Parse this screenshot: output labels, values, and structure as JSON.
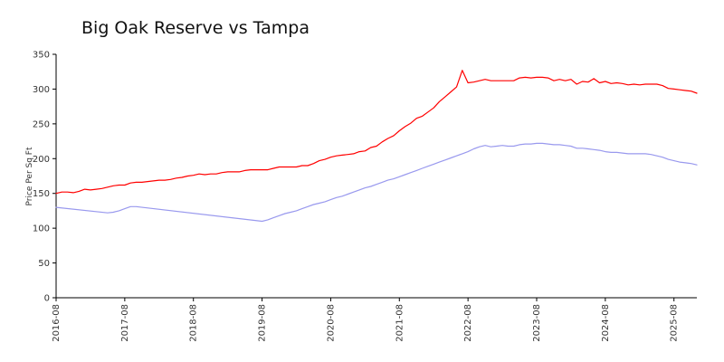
{
  "chart_data": {
    "type": "line",
    "title": "Big Oak Reserve vs Tampa",
    "xlabel": "",
    "ylabel": "Price Per Sq Ft",
    "ylim": [
      0,
      350
    ],
    "yticks": [
      0,
      50,
      100,
      150,
      200,
      250,
      300,
      350
    ],
    "xlim": [
      "2016-08",
      "2025-12"
    ],
    "xticks": [
      "2016-08",
      "2017-08",
      "2018-08",
      "2019-08",
      "2020-08",
      "2021-08",
      "2022-08",
      "2023-08",
      "2024-08",
      "2025-08"
    ],
    "grid": false,
    "legend": "none",
    "series": [
      {
        "name": "Big Oak Reserve",
        "color": "#ff0000",
        "points": [
          [
            "2016-08",
            150
          ],
          [
            "2016-09",
            152
          ],
          [
            "2016-10",
            152
          ],
          [
            "2016-11",
            151
          ],
          [
            "2016-12",
            153
          ],
          [
            "2017-01",
            156
          ],
          [
            "2017-02",
            155
          ],
          [
            "2017-03",
            156
          ],
          [
            "2017-04",
            157
          ],
          [
            "2017-05",
            159
          ],
          [
            "2017-06",
            161
          ],
          [
            "2017-07",
            162
          ],
          [
            "2017-08",
            162
          ],
          [
            "2017-09",
            165
          ],
          [
            "2017-10",
            166
          ],
          [
            "2017-11",
            166
          ],
          [
            "2017-12",
            167
          ],
          [
            "2018-01",
            168
          ],
          [
            "2018-02",
            169
          ],
          [
            "2018-03",
            169
          ],
          [
            "2018-04",
            170
          ],
          [
            "2018-05",
            172
          ],
          [
            "2018-06",
            173
          ],
          [
            "2018-07",
            175
          ],
          [
            "2018-08",
            176
          ],
          [
            "2018-09",
            178
          ],
          [
            "2018-10",
            177
          ],
          [
            "2018-11",
            178
          ],
          [
            "2018-12",
            178
          ],
          [
            "2019-01",
            180
          ],
          [
            "2019-02",
            181
          ],
          [
            "2019-03",
            181
          ],
          [
            "2019-04",
            181
          ],
          [
            "2019-05",
            183
          ],
          [
            "2019-06",
            184
          ],
          [
            "2019-07",
            184
          ],
          [
            "2019-08",
            184
          ],
          [
            "2019-09",
            184
          ],
          [
            "2019-10",
            186
          ],
          [
            "2019-11",
            188
          ],
          [
            "2019-12",
            188
          ],
          [
            "2020-01",
            188
          ],
          [
            "2020-02",
            188
          ],
          [
            "2020-03",
            190
          ],
          [
            "2020-04",
            190
          ],
          [
            "2020-05",
            193
          ],
          [
            "2020-06",
            197
          ],
          [
            "2020-07",
            199
          ],
          [
            "2020-08",
            202
          ],
          [
            "2020-09",
            204
          ],
          [
            "2020-10",
            205
          ],
          [
            "2020-11",
            206
          ],
          [
            "2020-12",
            207
          ],
          [
            "2021-01",
            210
          ],
          [
            "2021-02",
            211
          ],
          [
            "2021-03",
            216
          ],
          [
            "2021-04",
            218
          ],
          [
            "2021-05",
            224
          ],
          [
            "2021-06",
            229
          ],
          [
            "2021-07",
            233
          ],
          [
            "2021-08",
            240
          ],
          [
            "2021-09",
            246
          ],
          [
            "2021-10",
            251
          ],
          [
            "2021-11",
            258
          ],
          [
            "2021-12",
            261
          ],
          [
            "2022-01",
            267
          ],
          [
            "2022-02",
            273
          ],
          [
            "2022-03",
            282
          ],
          [
            "2022-04",
            289
          ],
          [
            "2022-05",
            296
          ],
          [
            "2022-06",
            303
          ],
          [
            "2022-07",
            327
          ],
          [
            "2022-08",
            309
          ],
          [
            "2022-09",
            310
          ],
          [
            "2022-10",
            312
          ],
          [
            "2022-11",
            314
          ],
          [
            "2022-12",
            312
          ],
          [
            "2023-01",
            312
          ],
          [
            "2023-02",
            312
          ],
          [
            "2023-03",
            312
          ],
          [
            "2023-04",
            312
          ],
          [
            "2023-05",
            316
          ],
          [
            "2023-06",
            317
          ],
          [
            "2023-07",
            316
          ],
          [
            "2023-08",
            317
          ],
          [
            "2023-09",
            317
          ],
          [
            "2023-10",
            316
          ],
          [
            "2023-11",
            312
          ],
          [
            "2023-12",
            314
          ],
          [
            "2024-01",
            312
          ],
          [
            "2024-02",
            314
          ],
          [
            "2024-03",
            307
          ],
          [
            "2024-04",
            311
          ],
          [
            "2024-05",
            310
          ],
          [
            "2024-06",
            315
          ],
          [
            "2024-07",
            309
          ],
          [
            "2024-08",
            311
          ],
          [
            "2024-09",
            308
          ],
          [
            "2024-10",
            309
          ],
          [
            "2024-11",
            308
          ],
          [
            "2024-12",
            306
          ],
          [
            "2025-01",
            307
          ],
          [
            "2025-02",
            306
          ],
          [
            "2025-03",
            307
          ],
          [
            "2025-04",
            307
          ],
          [
            "2025-05",
            307
          ],
          [
            "2025-06",
            305
          ],
          [
            "2025-07",
            301
          ],
          [
            "2025-08",
            300
          ],
          [
            "2025-09",
            299
          ],
          [
            "2025-10",
            298
          ],
          [
            "2025-11",
            297
          ],
          [
            "2025-12",
            294
          ]
        ]
      },
      {
        "name": "Tampa",
        "color": "#9999ee",
        "points": [
          [
            "2016-08",
            130
          ],
          [
            "2017-05",
            122
          ],
          [
            "2017-06",
            123
          ],
          [
            "2017-07",
            125
          ],
          [
            "2017-08",
            128
          ],
          [
            "2017-09",
            131
          ],
          [
            "2017-10",
            131
          ],
          [
            "2019-08",
            110
          ],
          [
            "2019-09",
            112
          ],
          [
            "2019-10",
            115
          ],
          [
            "2019-11",
            118
          ],
          [
            "2019-12",
            121
          ],
          [
            "2020-01",
            123
          ],
          [
            "2020-02",
            125
          ],
          [
            "2020-03",
            128
          ],
          [
            "2020-04",
            131
          ],
          [
            "2020-05",
            134
          ],
          [
            "2020-06",
            136
          ],
          [
            "2020-07",
            138
          ],
          [
            "2020-08",
            141
          ],
          [
            "2020-09",
            144
          ],
          [
            "2020-10",
            146
          ],
          [
            "2020-11",
            149
          ],
          [
            "2020-12",
            152
          ],
          [
            "2021-01",
            155
          ],
          [
            "2021-02",
            158
          ],
          [
            "2021-03",
            160
          ],
          [
            "2021-04",
            163
          ],
          [
            "2021-05",
            166
          ],
          [
            "2021-06",
            169
          ],
          [
            "2021-07",
            171
          ],
          [
            "2021-08",
            174
          ],
          [
            "2021-09",
            177
          ],
          [
            "2021-10",
            180
          ],
          [
            "2021-11",
            183
          ],
          [
            "2021-12",
            186
          ],
          [
            "2022-01",
            189
          ],
          [
            "2022-02",
            192
          ],
          [
            "2022-03",
            195
          ],
          [
            "2022-04",
            198
          ],
          [
            "2022-05",
            201
          ],
          [
            "2022-06",
            204
          ],
          [
            "2022-07",
            207
          ],
          [
            "2022-08",
            210
          ],
          [
            "2022-09",
            214
          ],
          [
            "2022-10",
            217
          ],
          [
            "2022-11",
            219
          ],
          [
            "2022-12",
            217
          ],
          [
            "2023-01",
            218
          ],
          [
            "2023-02",
            219
          ],
          [
            "2023-03",
            218
          ],
          [
            "2023-04",
            218
          ],
          [
            "2023-05",
            220
          ],
          [
            "2023-06",
            221
          ],
          [
            "2023-07",
            221
          ],
          [
            "2023-08",
            222
          ],
          [
            "2023-09",
            222
          ],
          [
            "2023-10",
            221
          ],
          [
            "2023-11",
            220
          ],
          [
            "2023-12",
            220
          ],
          [
            "2024-01",
            219
          ],
          [
            "2024-02",
            218
          ],
          [
            "2024-03",
            215
          ],
          [
            "2024-04",
            215
          ],
          [
            "2024-05",
            214
          ],
          [
            "2024-06",
            213
          ],
          [
            "2024-07",
            212
          ],
          [
            "2024-08",
            210
          ],
          [
            "2024-09",
            209
          ],
          [
            "2024-10",
            209
          ],
          [
            "2024-11",
            208
          ],
          [
            "2024-12",
            207
          ],
          [
            "2025-01",
            207
          ],
          [
            "2025-02",
            207
          ],
          [
            "2025-03",
            207
          ],
          [
            "2025-04",
            206
          ],
          [
            "2025-05",
            204
          ],
          [
            "2025-06",
            202
          ],
          [
            "2025-07",
            199
          ],
          [
            "2025-08",
            197
          ],
          [
            "2025-09",
            195
          ],
          [
            "2025-10",
            194
          ],
          [
            "2025-11",
            193
          ],
          [
            "2025-12",
            191
          ]
        ]
      }
    ]
  }
}
